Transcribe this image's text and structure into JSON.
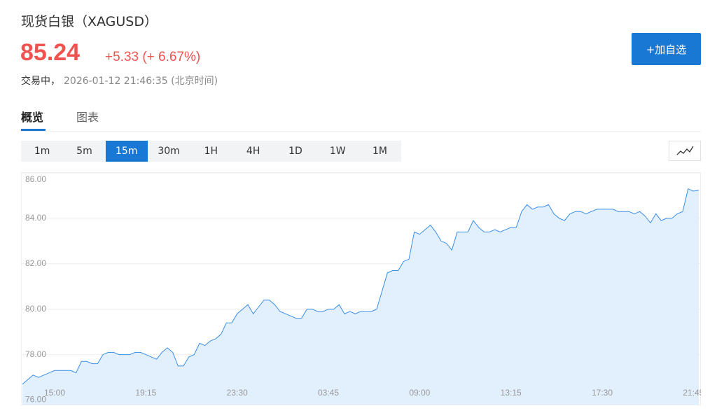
{
  "header": {
    "title": "现货白银（XAGUSD）",
    "price": "85.24",
    "change": "+5.33 (+ 6.67%)",
    "status": "交易中，",
    "timestamp": "2026-01-12 21:46:35 (北京时间)",
    "button": "+加自选"
  },
  "tabs": [
    "概览",
    "图表"
  ],
  "intervals": [
    "1m",
    "5m",
    "15m",
    "30m",
    "1H",
    "4H",
    "1D",
    "1W",
    "1M"
  ],
  "chart_data": {
    "type": "area",
    "color": "#3a8ee6",
    "fill": "#e2effc",
    "grid": true,
    "ylim": [
      75.8,
      86
    ],
    "yticks": [
      {
        "value": 76,
        "label": "76.00"
      },
      {
        "value": 78,
        "label": "78.00"
      },
      {
        "value": 80,
        "label": "80.00"
      },
      {
        "value": 82,
        "label": "82.00"
      },
      {
        "value": 84,
        "label": "84.00"
      },
      {
        "value": 86,
        "label": "86.00"
      }
    ],
    "categories": [
      null,
      null,
      null,
      null,
      null,
      null,
      "15:00",
      null,
      null,
      null,
      null,
      null,
      null,
      null,
      null,
      null,
      null,
      null,
      null,
      null,
      null,
      null,
      null,
      "19:15",
      null,
      null,
      null,
      null,
      null,
      null,
      null,
      null,
      null,
      null,
      null,
      null,
      null,
      null,
      null,
      null,
      "23:30",
      null,
      null,
      null,
      null,
      null,
      null,
      null,
      null,
      null,
      null,
      null,
      null,
      null,
      null,
      null,
      null,
      "03:45",
      null,
      null,
      null,
      null,
      null,
      null,
      null,
      null,
      null,
      null,
      null,
      null,
      null,
      null,
      null,
      null,
      "09:00",
      null,
      null,
      null,
      null,
      null,
      null,
      null,
      null,
      null,
      null,
      null,
      null,
      null,
      null,
      null,
      null,
      "13:15",
      null,
      null,
      null,
      null,
      null,
      null,
      null,
      null,
      null,
      null,
      null,
      null,
      null,
      null,
      null,
      null,
      "17:30",
      null,
      null,
      null,
      null,
      null,
      null,
      null,
      null,
      null,
      null,
      null,
      null,
      null,
      null,
      null,
      null,
      "21:45",
      null
    ],
    "values": [
      76.7,
      76.9,
      77.1,
      77.0,
      77.1,
      77.2,
      77.3,
      77.3,
      77.3,
      77.3,
      77.2,
      77.7,
      77.7,
      77.6,
      77.6,
      78.0,
      78.1,
      78.1,
      78.0,
      78.0,
      78.0,
      78.1,
      78.1,
      78.0,
      77.9,
      77.8,
      78.1,
      78.3,
      78.1,
      77.5,
      77.5,
      77.9,
      78.0,
      78.5,
      78.4,
      78.6,
      78.7,
      78.9,
      79.4,
      79.4,
      79.8,
      80.0,
      80.2,
      79.8,
      80.1,
      80.4,
      80.4,
      80.2,
      79.9,
      79.8,
      79.7,
      79.6,
      79.6,
      80.0,
      80.0,
      79.9,
      79.9,
      80.0,
      80.0,
      80.2,
      79.8,
      79.9,
      79.8,
      79.9,
      79.9,
      79.9,
      80.0,
      80.8,
      81.6,
      81.7,
      81.7,
      82.1,
      82.2,
      83.4,
      83.3,
      83.5,
      83.7,
      83.4,
      83.0,
      82.9,
      82.6,
      83.4,
      83.4,
      83.4,
      83.9,
      83.6,
      83.4,
      83.4,
      83.5,
      83.4,
      83.5,
      83.6,
      83.6,
      84.3,
      84.6,
      84.4,
      84.5,
      84.5,
      84.6,
      84.2,
      84.0,
      83.9,
      84.2,
      84.3,
      84.3,
      84.2,
      84.3,
      84.4,
      84.4,
      84.4,
      84.4,
      84.3,
      84.3,
      84.3,
      84.2,
      84.3,
      84.1,
      83.8,
      84.2,
      83.9,
      84.0,
      84.0,
      84.2,
      84.3,
      85.3,
      85.2,
      85.24
    ]
  }
}
